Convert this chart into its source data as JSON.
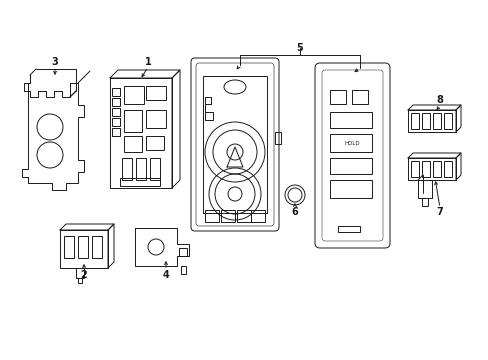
{
  "bg_color": "#ffffff",
  "line_color": "#1a1a1a",
  "line_width": 0.7,
  "fig_width": 4.89,
  "fig_height": 3.6,
  "dpi": 100
}
